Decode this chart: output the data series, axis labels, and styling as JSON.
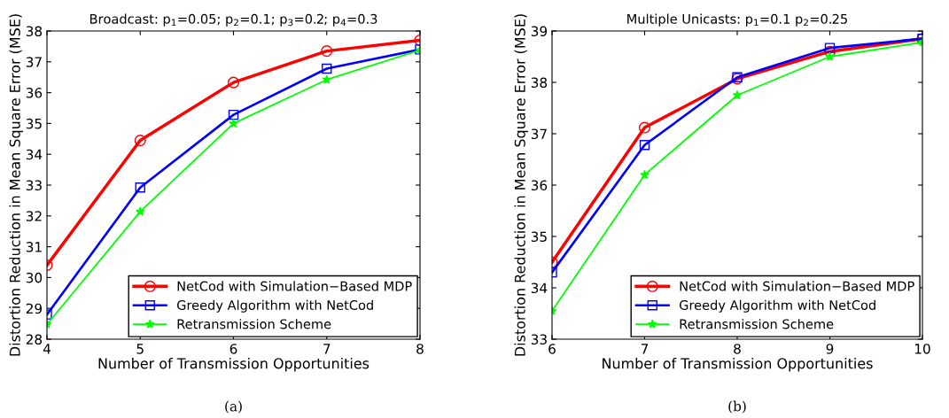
{
  "chart_data": [
    {
      "type": "line",
      "title": "Broadcast: p$_{1}$=0.05; p$_{2}$=0.1; p$_{3}$=0.2; p$_{4}$=0.3",
      "xlabel": "Number of Transmission Opportunities",
      "ylabel": "Distortion Reduction in Mean Square Error (MSE)",
      "x": [
        4,
        5,
        6,
        7,
        8
      ],
      "xlim": [
        4,
        8
      ],
      "xticks": [
        4,
        5,
        6,
        7,
        8
      ],
      "ylim": [
        28,
        38
      ],
      "yticks": [
        28,
        29,
        30,
        31,
        32,
        33,
        34,
        35,
        36,
        37,
        38
      ],
      "legend": "bottom right",
      "grid": false,
      "annotations": [
        "(a)"
      ],
      "series": [
        {
          "name": "NetCod with Simulation−Based MDP",
          "color": "#ff0000",
          "marker": "circle",
          "values": [
            30.4,
            34.45,
            36.33,
            37.35,
            37.7
          ]
        },
        {
          "name": "Greedy Algorithm with NetCod",
          "color": "#0000ff",
          "marker": "square",
          "values": [
            28.8,
            32.92,
            35.28,
            36.78,
            37.4
          ]
        },
        {
          "name": "Retransmission Scheme",
          "color": "#00ff00",
          "marker": "star",
          "values": [
            28.48,
            32.14,
            35.0,
            36.42,
            37.38
          ]
        }
      ]
    },
    {
      "type": "line",
      "title": "Multiple Unicasts: p$_{1}$=0.1 p$_{2}$=0.25",
      "xlabel": "Number of Transmission Opportunities",
      "ylabel": "Distortion Reduction in Mean Square Error (MSE)",
      "x": [
        6,
        7,
        8,
        9,
        10
      ],
      "xlim": [
        6,
        10
      ],
      "xticks": [
        6,
        7,
        8,
        9,
        10
      ],
      "ylim": [
        33,
        39
      ],
      "yticks": [
        33,
        34,
        35,
        36,
        37,
        38,
        39
      ],
      "legend": "bottom right",
      "grid": false,
      "annotations": [
        "(b)"
      ],
      "series": [
        {
          "name": "NetCod with Simulation−Based MDP",
          "color": "#ff0000",
          "marker": "circle",
          "values": [
            34.5,
            37.12,
            38.07,
            38.6,
            38.85
          ]
        },
        {
          "name": "Greedy Algorithm with NetCod",
          "color": "#0000ff",
          "marker": "square",
          "values": [
            34.3,
            36.78,
            38.1,
            38.67,
            38.85
          ]
        },
        {
          "name": "Retransmission Scheme",
          "color": "#00ff00",
          "marker": "star",
          "values": [
            33.55,
            36.2,
            37.75,
            38.5,
            38.78
          ]
        }
      ]
    }
  ]
}
